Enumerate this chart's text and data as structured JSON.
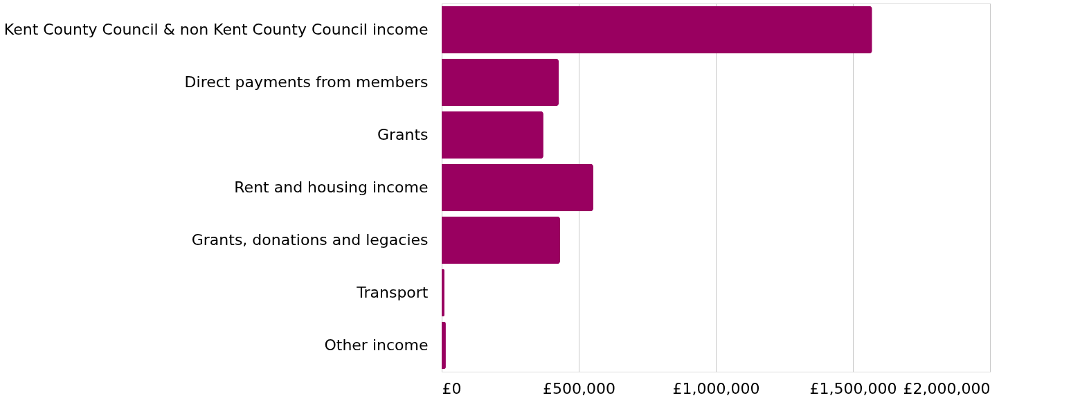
{
  "chart_data": {
    "type": "bar",
    "orientation": "horizontal",
    "categories": [
      "Kent County Council & non Kent County Council income",
      "Direct payments from members",
      "Grants",
      "Rent and housing income",
      "Grants, donations and legacies",
      "Transport",
      "Other income"
    ],
    "values": [
      1570000,
      427000,
      371000,
      553000,
      432000,
      10000,
      15000
    ],
    "color": "#990060",
    "xlim": [
      0,
      2000000
    ],
    "xticks": [
      {
        "value": 0,
        "label": "£0"
      },
      {
        "value": 500000,
        "label": "£500,000"
      },
      {
        "value": 1000000,
        "label": "£1,000,000"
      },
      {
        "value": 1500000,
        "label": "£1,500,000"
      },
      {
        "value": 2000000,
        "label": "£2,000,000"
      }
    ],
    "grid": "x"
  }
}
